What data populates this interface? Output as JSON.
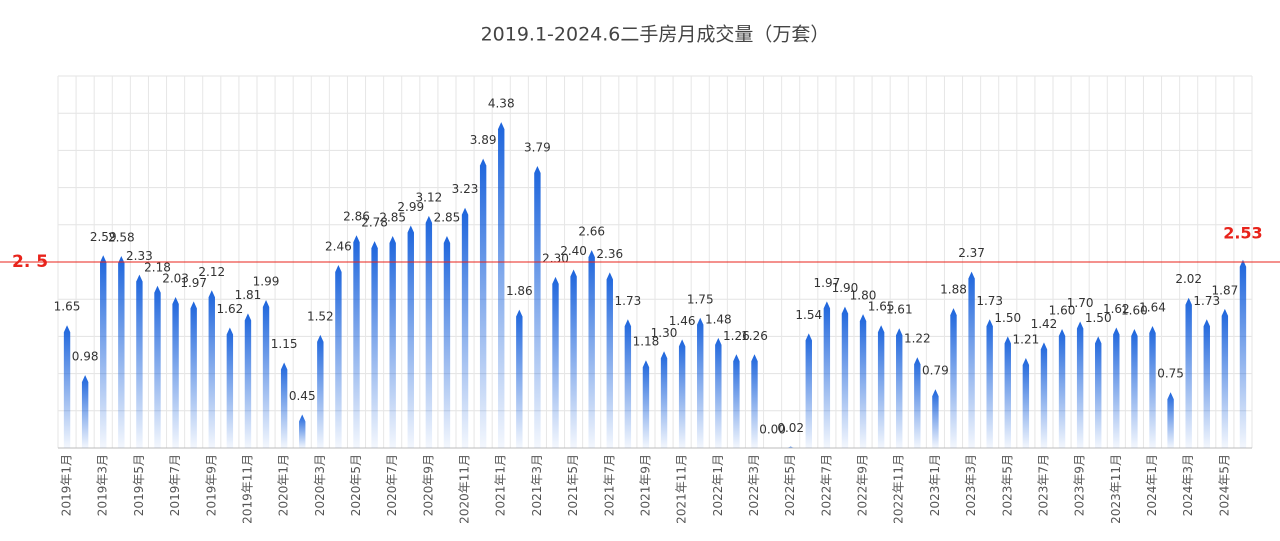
{
  "chart_data": {
    "type": "bar",
    "title": "2019.1-2024.6二手房月成交量（万套）",
    "categories": [
      "2019年1月",
      null,
      "2019年3月",
      null,
      "2019年5月",
      null,
      "2019年7月",
      null,
      "2019年9月",
      null,
      "2019年11月",
      null,
      "2020年1月",
      null,
      "2020年3月",
      null,
      "2020年5月",
      null,
      "2020年7月",
      null,
      "2020年9月",
      null,
      "2020年11月",
      null,
      "2021年1月",
      null,
      "2021年3月",
      null,
      "2021年5月",
      null,
      "2021年7月",
      null,
      "2021年9月",
      null,
      "2021年11月",
      null,
      "2022年1月",
      null,
      "2022年3月",
      null,
      "2022年5月",
      null,
      "2022年7月",
      null,
      "2022年9月",
      null,
      "2022年11月",
      null,
      "2023年1月",
      null,
      "2023年3月",
      null,
      "2023年5月",
      null,
      "2023年7月",
      null,
      "2023年9月",
      null,
      "2023年11月",
      null,
      "2024年1月",
      null,
      "2024年3月",
      null,
      "2024年5月",
      null
    ],
    "values": [
      1.65,
      0.98,
      2.59,
      2.58,
      2.33,
      2.18,
      2.03,
      1.97,
      2.12,
      1.62,
      1.81,
      1.99,
      1.15,
      0.45,
      1.52,
      2.46,
      2.86,
      2.78,
      2.85,
      2.99,
      3.12,
      2.85,
      3.23,
      3.89,
      4.38,
      1.86,
      3.79,
      2.3,
      2.4,
      2.66,
      2.36,
      1.73,
      1.18,
      1.3,
      1.46,
      1.75,
      1.48,
      1.26,
      1.26,
      0.0,
      0.02,
      1.54,
      1.97,
      1.9,
      1.8,
      1.65,
      1.61,
      1.22,
      0.79,
      1.88,
      2.37,
      1.73,
      1.5,
      1.21,
      1.42,
      1.6,
      1.7,
      1.5,
      1.62,
      1.6,
      1.64,
      0.75,
      2.02,
      1.73,
      1.87,
      2.53
    ],
    "value_labels": [
      "1.65",
      "0.98",
      "2.59",
      "2.58",
      "2.33",
      "2.18",
      "2.03",
      "1.97",
      "2.12",
      "1.62",
      "1.81",
      "1.99",
      "1.15",
      "0.45",
      "1.52",
      "2.46",
      "2.86",
      "2.78",
      "2.85",
      "2.99",
      "3.12",
      "2.85",
      "3.23",
      "3.89",
      "4.38",
      "1.86",
      "3.79",
      "2.30",
      "2.40",
      "2.66",
      "2.36",
      "1.73",
      "1.18",
      "1.30",
      "1.46",
      "1.75",
      "1.48",
      "1.26",
      "1.26",
      "0.00",
      "0.02",
      "1.54",
      "1.97",
      "1.90",
      "1.80",
      "1.65",
      "1.61",
      "1.22",
      "0.79",
      "1.88",
      "2.37",
      "1.73",
      "1.50",
      "1.21",
      "1.42",
      "1.60",
      "1.70",
      "1.50",
      "1.62",
      "1.60",
      "1.64",
      "0.75",
      "2.02",
      "1.73",
      "1.87",
      "2.53"
    ],
    "color": "#1f6fe0",
    "ylim": [
      0,
      5
    ],
    "yticks": [
      0,
      0.5,
      1,
      1.5,
      2,
      2.5,
      3,
      3.5,
      4,
      4.5,
      5
    ],
    "grid": true,
    "reference_line": {
      "value": 2.5,
      "label": "2. 5",
      "color": "#e8231b"
    }
  }
}
